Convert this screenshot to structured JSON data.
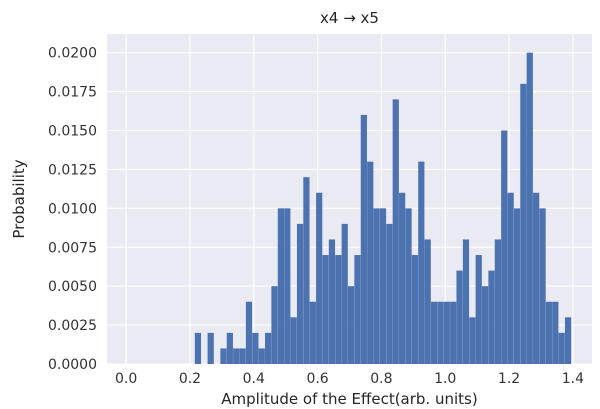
{
  "chart_data": {
    "type": "bar",
    "title": "x4 → x5",
    "xlabel": "Amplitude of the Effect(arb. units)",
    "ylabel": "Probability",
    "xlim": [
      -0.06,
      1.46
    ],
    "ylim": [
      0,
      0.0212
    ],
    "grid": true,
    "bin_width": 0.0195,
    "x_ticks": [
      0.0,
      0.2,
      0.4,
      0.6,
      0.8,
      1.0,
      1.2,
      1.4
    ],
    "x_tick_labels": [
      "0.0",
      "0.2",
      "0.4",
      "0.6",
      "0.8",
      "1.0",
      "1.2",
      "1.4"
    ],
    "y_ticks": [
      0.0,
      0.0025,
      0.005,
      0.0075,
      0.01,
      0.0125,
      0.015,
      0.0175,
      0.02
    ],
    "y_tick_labels": [
      "0.0000",
      "0.0025",
      "0.0050",
      "0.0075",
      "0.0100",
      "0.0125",
      "0.0150",
      "0.0175",
      "0.0200"
    ],
    "x": [
      0.225,
      0.265,
      0.305,
      0.325,
      0.345,
      0.365,
      0.385,
      0.405,
      0.425,
      0.445,
      0.465,
      0.485,
      0.505,
      0.525,
      0.545,
      0.565,
      0.585,
      0.605,
      0.625,
      0.645,
      0.665,
      0.685,
      0.705,
      0.725,
      0.745,
      0.765,
      0.785,
      0.805,
      0.825,
      0.845,
      0.865,
      0.885,
      0.905,
      0.925,
      0.945,
      0.965,
      0.985,
      1.005,
      1.025,
      1.045,
      1.065,
      1.085,
      1.105,
      1.125,
      1.145,
      1.165,
      1.185,
      1.205,
      1.225,
      1.245,
      1.265,
      1.285,
      1.305,
      1.325,
      1.345,
      1.365,
      1.385
    ],
    "values": [
      0.002,
      0.002,
      0.001,
      0.002,
      0.001,
      0.001,
      0.004,
      0.002,
      0.001,
      0.002,
      0.005,
      0.01,
      0.01,
      0.003,
      0.009,
      0.012,
      0.004,
      0.011,
      0.007,
      0.008,
      0.007,
      0.009,
      0.005,
      0.007,
      0.016,
      0.013,
      0.01,
      0.01,
      0.009,
      0.017,
      0.011,
      0.01,
      0.007,
      0.013,
      0.008,
      0.004,
      0.004,
      0.004,
      0.004,
      0.006,
      0.008,
      0.003,
      0.007,
      0.005,
      0.006,
      0.008,
      0.015,
      0.011,
      0.01,
      0.018,
      0.02,
      0.011,
      0.01,
      0.004,
      0.004,
      0.002,
      0.003
    ],
    "colors": {
      "bar": "#4c72b0",
      "plot_background": "#eaeaf2",
      "grid": "#ffffff"
    }
  }
}
